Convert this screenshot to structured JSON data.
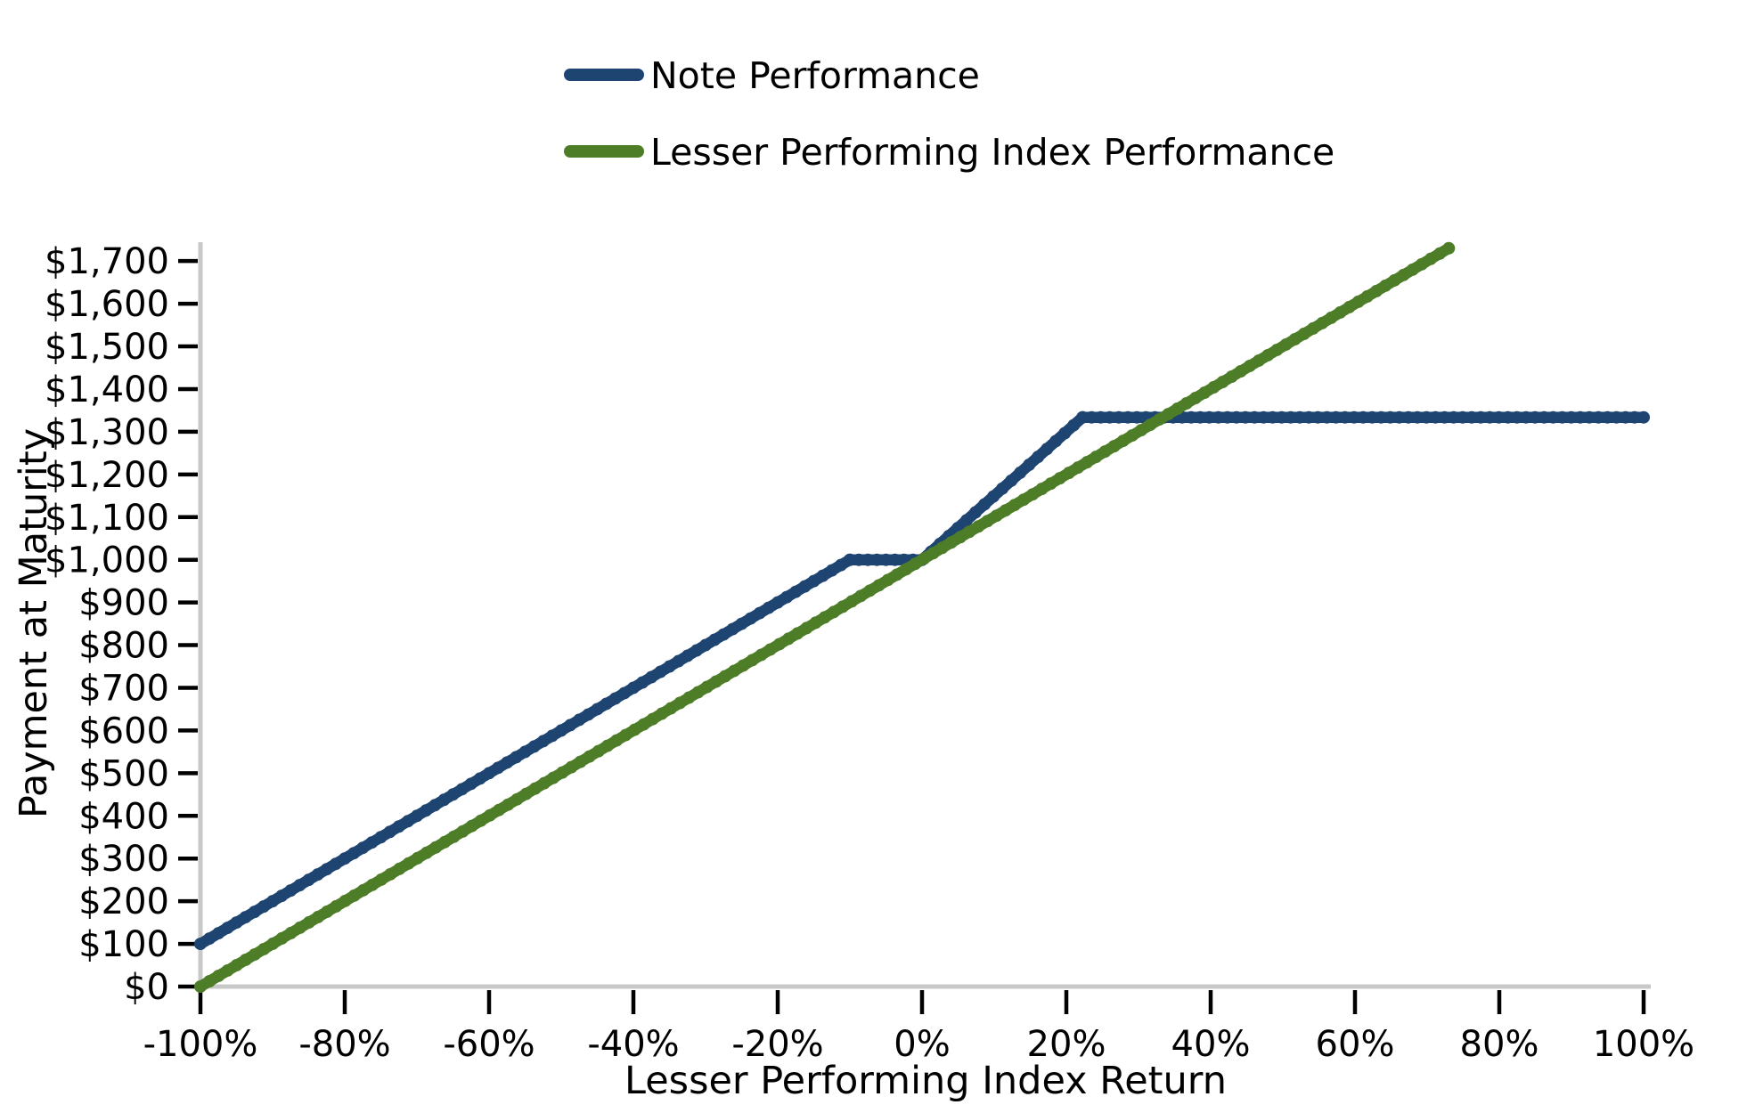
{
  "chart_data": {
    "type": "line",
    "title": "",
    "xlabel": "Lesser Performing Index Return",
    "ylabel": "Payment at Maturity",
    "grid": false,
    "legend_position": "upper center",
    "background_color": "#ffffff",
    "spine_color": "#c8c8c8",
    "tick_color": "#000000",
    "xlim": [
      -100,
      101
    ],
    "ylim": [
      0,
      1740
    ],
    "x_tick_values": [
      -100,
      -80,
      -60,
      -40,
      -20,
      0,
      20,
      40,
      60,
      80,
      100
    ],
    "x_tick_labels": [
      "-100%",
      "-80%",
      "-60%",
      "-40%",
      "-20%",
      "0%",
      "20%",
      "40%",
      "60%",
      "80%",
      "100%"
    ],
    "y_tick_values": [
      0,
      100,
      200,
      300,
      400,
      500,
      600,
      700,
      800,
      900,
      1000,
      1100,
      1200,
      1300,
      1400,
      1500,
      1600,
      1700
    ],
    "y_tick_labels": [
      "$0",
      "$100",
      "$200",
      "$300",
      "$400",
      "$500",
      "$600",
      "$700",
      "$800",
      "$900",
      "$1,000",
      "$1,100",
      "$1,200",
      "$1,300",
      "$1,400",
      "$1,500",
      "$1,600",
      "$1,700"
    ],
    "series": [
      {
        "name": "Note Performance",
        "color": "#1e4472",
        "points": [
          [
            -100,
            100
          ],
          [
            -10,
            1000
          ],
          [
            0,
            1000
          ],
          [
            22.25,
            1333.75
          ],
          [
            100,
            1333.75
          ]
        ]
      },
      {
        "name": "Lesser Performing Index Performance",
        "color": "#4e7d28",
        "points": [
          [
            -100,
            0
          ],
          [
            73,
            1730
          ]
        ]
      }
    ]
  }
}
